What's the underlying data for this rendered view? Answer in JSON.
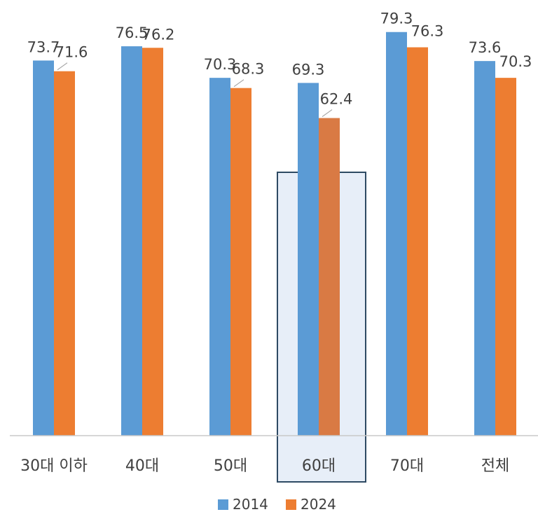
{
  "chart_data": {
    "type": "bar",
    "title": "",
    "xlabel": "",
    "ylabel": "",
    "categories": [
      "30대 이하",
      "40대",
      "50대",
      "60대",
      "70대",
      "전체"
    ],
    "series": [
      {
        "name": "2014",
        "color": "#5b9bd5",
        "values": [
          73.7,
          76.5,
          70.3,
          69.3,
          79.3,
          73.6
        ]
      },
      {
        "name": "2024",
        "color": "#ed7d31",
        "values": [
          71.6,
          76.2,
          68.3,
          62.4,
          76.3,
          70.3
        ]
      }
    ],
    "highlight_category": "60대",
    "highlight_bar_color": "#d97a44",
    "highlight_fill": "#e7eef8",
    "highlight_border": "#2e4a63",
    "axis_line_color": "#c8c8c8",
    "label_color": "#404040",
    "grid": false,
    "legend_position": "bottom",
    "yaxis_visible": false
  }
}
